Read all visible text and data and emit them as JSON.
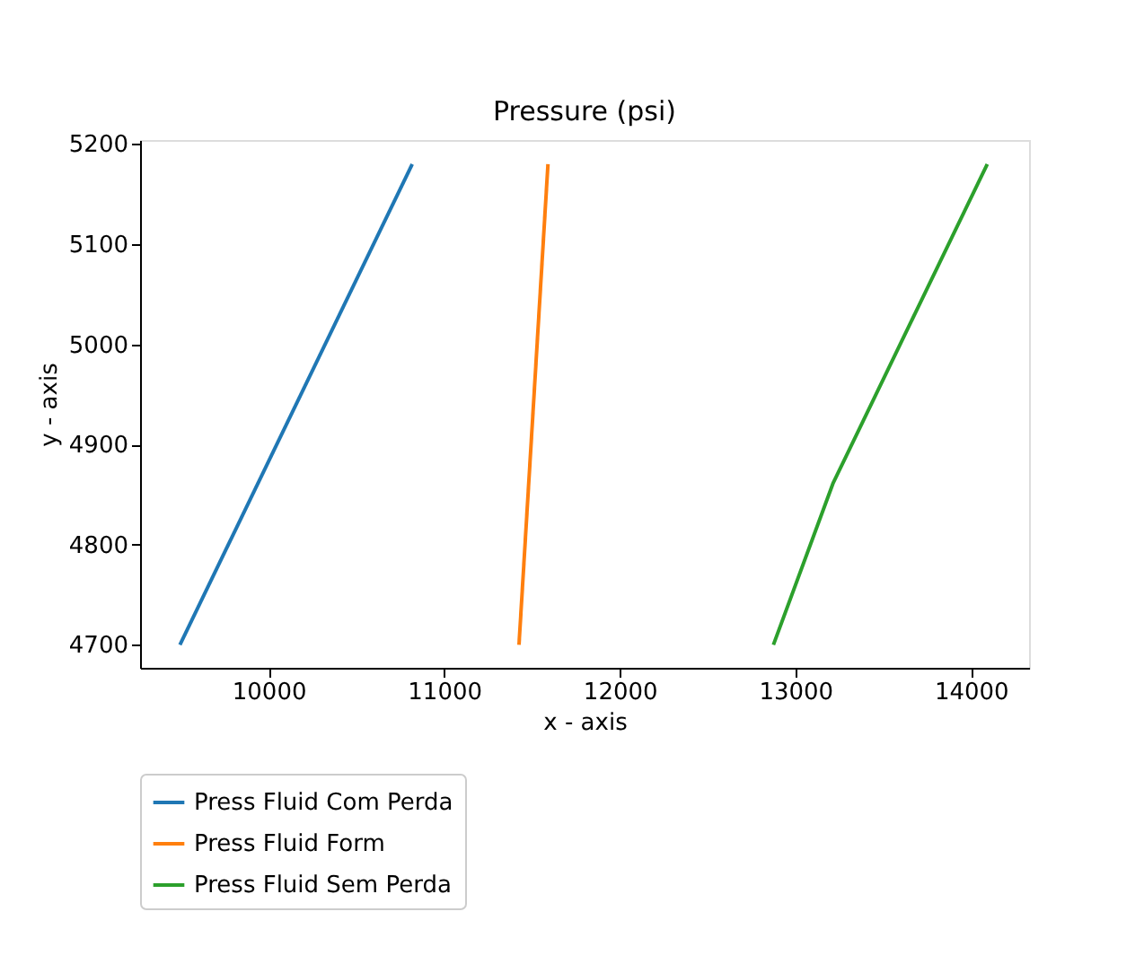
{
  "chart_data": {
    "type": "line",
    "title": "Pressure (psi)",
    "xlabel": "x - axis",
    "ylabel": "y - axis",
    "series": [
      {
        "name": "Press Fluid Com Perda",
        "color": "#1f77b4",
        "x": [
          9495,
          10818
        ],
        "values": [
          4700,
          5180
        ]
      },
      {
        "name": "Press Fluid Form",
        "color": "#ff7f0e",
        "x": [
          11426,
          11591
        ],
        "values": [
          4700,
          5180
        ]
      },
      {
        "name": "Press Fluid Sem Perda",
        "color": "#2ca02c",
        "x": [
          12875,
          13214,
          14093
        ],
        "values": [
          4700,
          4861,
          5180
        ]
      }
    ],
    "xlim": [
      9268,
      14331
    ],
    "xticks": [
      10000,
      11000,
      12000,
      13000,
      14000
    ],
    "ylim": [
      4677,
      5204
    ],
    "yticks": [
      4700,
      4800,
      4900,
      5000,
      5100,
      5200
    ],
    "grid": false,
    "legend": "bottom left",
    "marker": "none",
    "line_style": "solid"
  }
}
